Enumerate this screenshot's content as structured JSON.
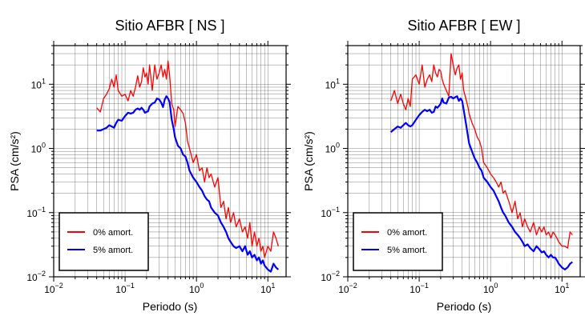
{
  "figure": {
    "colors": {
      "series_0": "#ff0000",
      "series_5": "#0000ff",
      "axis": "#000000",
      "grid": "#000000"
    }
  },
  "chart_data": [
    {
      "type": "line",
      "title": "Sitio AFBR [ NS ]",
      "xlabel": "Periodo (s)",
      "ylabel": "PSA (cm/s²)",
      "xscale": "log",
      "yscale": "log",
      "xlim": [
        0.01,
        18
      ],
      "ylim": [
        0.01,
        40
      ],
      "xticks": [
        {
          "v": 0.01,
          "b": "10",
          "e": "−2"
        },
        {
          "v": 0.1,
          "b": "10",
          "e": "−1"
        },
        {
          "v": 1,
          "b": "10",
          "e": "0"
        },
        {
          "v": 10,
          "b": "10",
          "e": "1"
        }
      ],
      "yticks": [
        {
          "v": 0.01,
          "b": "10",
          "e": "−2"
        },
        {
          "v": 0.1,
          "b": "10",
          "e": "−1"
        },
        {
          "v": 1,
          "b": "10",
          "e": "0"
        },
        {
          "v": 10,
          "b": "10",
          "e": "1"
        }
      ],
      "grid": true,
      "legend_position": "bottom-left",
      "series": [
        {
          "name": "0% amort.",
          "color": "#ff0000",
          "x": [
            0.04,
            0.045,
            0.05,
            0.055,
            0.06,
            0.065,
            0.07,
            0.075,
            0.08,
            0.09,
            0.1,
            0.11,
            0.12,
            0.13,
            0.14,
            0.15,
            0.16,
            0.17,
            0.18,
            0.19,
            0.2,
            0.21,
            0.22,
            0.24,
            0.26,
            0.28,
            0.3,
            0.32,
            0.34,
            0.36,
            0.38,
            0.4,
            0.42,
            0.45,
            0.48,
            0.5,
            0.55,
            0.6,
            0.65,
            0.7,
            0.75,
            0.8,
            0.9,
            1.0,
            1.1,
            1.2,
            1.3,
            1.4,
            1.5,
            1.6,
            1.8,
            2.0,
            2.2,
            2.4,
            2.6,
            2.8,
            3.0,
            3.3,
            3.6,
            4.0,
            4.4,
            4.8,
            5.2,
            5.6,
            6.0,
            6.5,
            7.0,
            7.5,
            8.0,
            8.5,
            9.0,
            10,
            11,
            12,
            13,
            14
          ],
          "values": [
            4.3,
            3.7,
            6.0,
            7.0,
            8.5,
            12.0,
            9.0,
            14.0,
            8.0,
            6.5,
            7.0,
            5.5,
            8.0,
            6.5,
            9.0,
            13.5,
            9.0,
            11.0,
            18.0,
            13.0,
            15.0,
            10.0,
            20.0,
            8.0,
            20.0,
            12.0,
            15.0,
            20.0,
            13.0,
            17.0,
            12.0,
            23.0,
            14.0,
            5.0,
            4.0,
            2.2,
            4.5,
            4.0,
            3.5,
            2.5,
            1.3,
            1.0,
            0.6,
            0.8,
            0.45,
            0.5,
            0.3,
            0.5,
            0.35,
            0.4,
            0.25,
            0.35,
            0.12,
            0.15,
            0.08,
            0.12,
            0.07,
            0.1,
            0.06,
            0.08,
            0.05,
            0.06,
            0.04,
            0.07,
            0.03,
            0.05,
            0.03,
            0.04,
            0.025,
            0.03,
            0.02,
            0.03,
            0.025,
            0.05,
            0.04,
            0.03
          ]
        },
        {
          "name": "5% amort.",
          "color": "#0000ff",
          "x": [
            0.04,
            0.045,
            0.05,
            0.055,
            0.06,
            0.065,
            0.07,
            0.075,
            0.08,
            0.09,
            0.1,
            0.11,
            0.12,
            0.13,
            0.14,
            0.15,
            0.16,
            0.17,
            0.18,
            0.19,
            0.2,
            0.21,
            0.22,
            0.24,
            0.26,
            0.28,
            0.3,
            0.32,
            0.34,
            0.36,
            0.38,
            0.4,
            0.42,
            0.45,
            0.48,
            0.5,
            0.55,
            0.6,
            0.65,
            0.7,
            0.75,
            0.8,
            0.9,
            1.0,
            1.1,
            1.2,
            1.3,
            1.4,
            1.5,
            1.6,
            1.8,
            2.0,
            2.2,
            2.4,
            2.6,
            2.8,
            3.0,
            3.3,
            3.6,
            4.0,
            4.4,
            4.8,
            5.2,
            5.6,
            6.0,
            6.5,
            7.0,
            7.5,
            8.0,
            8.5,
            9.0,
            10,
            11,
            12,
            13,
            14
          ],
          "values": [
            1.9,
            1.9,
            2.0,
            2.1,
            2.3,
            2.2,
            2.1,
            2.5,
            2.8,
            2.7,
            3.2,
            3.6,
            3.5,
            3.6,
            4.0,
            4.2,
            4.0,
            4.3,
            4.0,
            3.6,
            3.7,
            3.8,
            4.5,
            5.0,
            5.2,
            6.0,
            5.8,
            5.2,
            4.4,
            5.8,
            6.5,
            6.0,
            5.3,
            2.8,
            2.0,
            1.5,
            1.1,
            1.0,
            0.8,
            0.75,
            0.6,
            0.45,
            0.35,
            0.3,
            0.25,
            0.22,
            0.18,
            0.16,
            0.15,
            0.12,
            0.1,
            0.09,
            0.07,
            0.06,
            0.05,
            0.04,
            0.035,
            0.03,
            0.028,
            0.03,
            0.025,
            0.03,
            0.022,
            0.025,
            0.02,
            0.022,
            0.018,
            0.02,
            0.016,
            0.018,
            0.015,
            0.013,
            0.012,
            0.016,
            0.014,
            0.013
          ]
        }
      ]
    },
    {
      "type": "line",
      "title": "Sitio AFBR [ EW ]",
      "xlabel": "Periodo (s)",
      "ylabel": "PSA (cm/s²)",
      "xscale": "log",
      "yscale": "log",
      "xlim": [
        0.01,
        18
      ],
      "ylim": [
        0.01,
        40
      ],
      "xticks": [
        {
          "v": 0.01,
          "b": "10",
          "e": "−2"
        },
        {
          "v": 0.1,
          "b": "10",
          "e": "−1"
        },
        {
          "v": 1,
          "b": "10",
          "e": "0"
        },
        {
          "v": 10,
          "b": "10",
          "e": "1"
        }
      ],
      "yticks": [
        {
          "v": 0.01,
          "b": "10",
          "e": "−2"
        },
        {
          "v": 0.1,
          "b": "10",
          "e": "−1"
        },
        {
          "v": 1,
          "b": "10",
          "e": "0"
        },
        {
          "v": 10,
          "b": "10",
          "e": "1"
        }
      ],
      "grid": true,
      "legend_position": "bottom-left",
      "series": [
        {
          "name": "0% amort.",
          "color": "#ff0000",
          "x": [
            0.04,
            0.045,
            0.05,
            0.055,
            0.06,
            0.065,
            0.07,
            0.075,
            0.08,
            0.09,
            0.1,
            0.11,
            0.12,
            0.13,
            0.14,
            0.15,
            0.16,
            0.17,
            0.18,
            0.19,
            0.2,
            0.21,
            0.22,
            0.24,
            0.26,
            0.28,
            0.3,
            0.32,
            0.34,
            0.36,
            0.38,
            0.4,
            0.42,
            0.45,
            0.48,
            0.5,
            0.55,
            0.6,
            0.65,
            0.7,
            0.75,
            0.8,
            0.9,
            1.0,
            1.1,
            1.2,
            1.3,
            1.4,
            1.5,
            1.6,
            1.8,
            2.0,
            2.2,
            2.4,
            2.6,
            2.8,
            3.0,
            3.3,
            3.6,
            4.0,
            4.4,
            4.8,
            5.2,
            5.6,
            6.0,
            6.5,
            7.0,
            7.5,
            8.0,
            8.5,
            9.0,
            10,
            11,
            12,
            13,
            14
          ],
          "values": [
            5.5,
            8.0,
            5.0,
            7.0,
            5.0,
            4.0,
            6.0,
            4.5,
            12.0,
            14.0,
            10.0,
            20.0,
            9.0,
            12.0,
            14.0,
            11.0,
            20.0,
            15.0,
            13.0,
            17.0,
            16.0,
            12.0,
            10.0,
            8.0,
            6.5,
            30.0,
            20.0,
            14.0,
            18.0,
            20.0,
            12.0,
            15.0,
            8.0,
            6.0,
            4.5,
            3.5,
            2.5,
            2.0,
            1.5,
            1.3,
            1.0,
            0.6,
            0.5,
            0.4,
            0.35,
            0.3,
            0.25,
            0.3,
            0.2,
            0.22,
            0.15,
            0.1,
            0.15,
            0.08,
            0.1,
            0.06,
            0.08,
            0.06,
            0.05,
            0.07,
            0.045,
            0.06,
            0.05,
            0.06,
            0.045,
            0.05,
            0.04,
            0.05,
            0.045,
            0.04,
            0.035,
            0.03,
            0.03,
            0.028,
            0.05,
            0.045
          ]
        },
        {
          "name": "5% amort.",
          "color": "#0000ff",
          "x": [
            0.04,
            0.045,
            0.05,
            0.055,
            0.06,
            0.065,
            0.07,
            0.075,
            0.08,
            0.09,
            0.1,
            0.11,
            0.12,
            0.13,
            0.14,
            0.15,
            0.16,
            0.17,
            0.18,
            0.19,
            0.2,
            0.21,
            0.22,
            0.24,
            0.26,
            0.28,
            0.3,
            0.32,
            0.34,
            0.36,
            0.38,
            0.4,
            0.42,
            0.45,
            0.48,
            0.5,
            0.55,
            0.6,
            0.65,
            0.7,
            0.75,
            0.8,
            0.9,
            1.0,
            1.1,
            1.2,
            1.3,
            1.4,
            1.5,
            1.6,
            1.8,
            2.0,
            2.2,
            2.4,
            2.6,
            2.8,
            3.0,
            3.3,
            3.6,
            4.0,
            4.4,
            4.8,
            5.2,
            5.6,
            6.0,
            6.5,
            7.0,
            7.5,
            8.0,
            8.5,
            9.0,
            10,
            11,
            12,
            13,
            14
          ],
          "values": [
            1.8,
            2.0,
            2.2,
            2.1,
            2.3,
            2.5,
            2.3,
            2.2,
            2.3,
            2.8,
            3.3,
            3.7,
            4.0,
            3.8,
            4.0,
            3.6,
            3.7,
            4.5,
            4.3,
            4.6,
            5.0,
            6.0,
            5.2,
            5.0,
            6.2,
            6.4,
            6.0,
            6.3,
            6.5,
            5.5,
            6.0,
            5.5,
            4.0,
            2.5,
            1.6,
            1.2,
            0.9,
            0.7,
            0.6,
            0.5,
            0.45,
            0.35,
            0.3,
            0.25,
            0.22,
            0.18,
            0.15,
            0.12,
            0.1,
            0.09,
            0.07,
            0.06,
            0.05,
            0.045,
            0.04,
            0.035,
            0.03,
            0.032,
            0.028,
            0.025,
            0.03,
            0.027,
            0.024,
            0.025,
            0.022,
            0.02,
            0.022,
            0.02,
            0.02,
            0.018,
            0.016,
            0.014,
            0.013,
            0.014,
            0.016,
            0.017
          ]
        }
      ]
    }
  ]
}
